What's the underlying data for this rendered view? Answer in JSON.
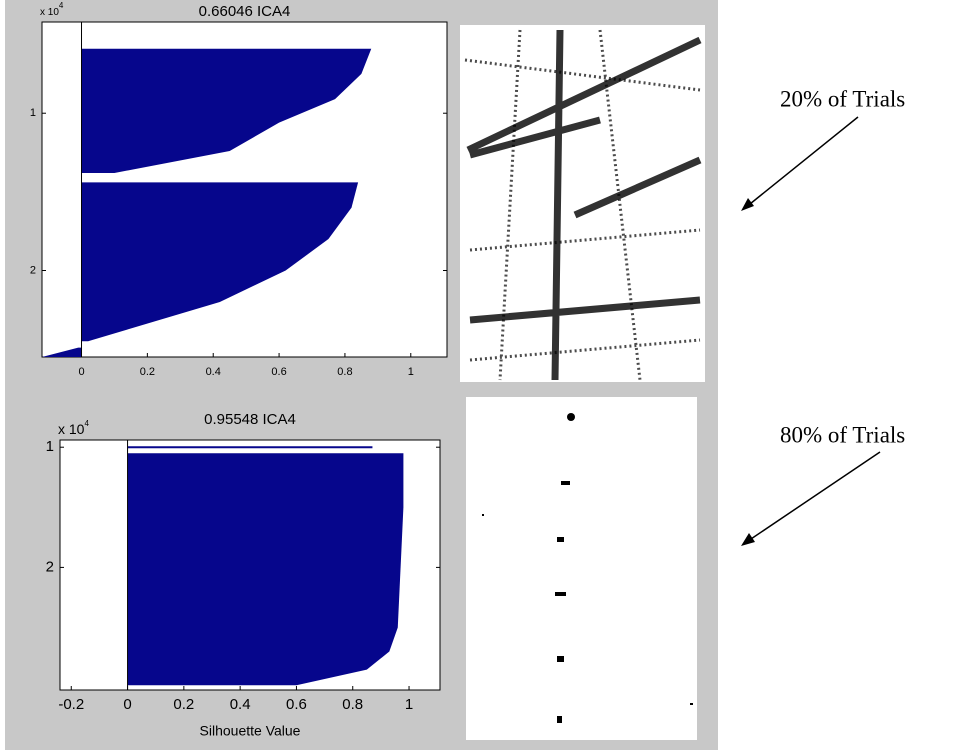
{
  "chart_data": [
    {
      "type": "silhouette",
      "title": "0.66046 ICA4",
      "y_multiplier": {
        "base": "x 10",
        "exp": "4"
      },
      "xlim": [
        -0.12,
        1.11
      ],
      "xticks": [
        0,
        0.2,
        0.4,
        0.6,
        0.8,
        1
      ],
      "ylim": [
        0.42,
        2.55
      ],
      "yticks": [
        1,
        2
      ],
      "series": [
        {
          "color": "#06068c",
          "y": [
            0.59,
            0.75,
            0.91,
            1.06,
            1.24,
            1.38
          ],
          "x": [
            0.88,
            0.85,
            0.77,
            0.6,
            0.45,
            0.1
          ]
        },
        {
          "color": "#06068c",
          "y": [
            1.44,
            1.6,
            1.8,
            2.0,
            2.2,
            2.45
          ],
          "x": [
            0.84,
            0.82,
            0.75,
            0.62,
            0.42,
            0.02
          ]
        },
        {
          "color": "#06068c",
          "y": [
            2.49,
            2.55
          ],
          "x": [
            -0.01,
            -0.12
          ]
        }
      ]
    },
    {
      "type": "silhouette",
      "title": "0.95548 ICA4",
      "y_multiplier": {
        "base": "x 10",
        "exp": "4"
      },
      "xlabel": "Silhouette Value",
      "xlim": [
        -0.24,
        1.11
      ],
      "xticks": [
        -0.2,
        0,
        0.2,
        0.4,
        0.6,
        0.8,
        1
      ],
      "ylim": [
        0.94,
        3.02
      ],
      "yticks": [
        1,
        2
      ],
      "series": [
        {
          "color": "#06068c",
          "y": [
            1.0
          ],
          "x": [
            0.87
          ]
        },
        {
          "color": "#06068c",
          "y": [
            1.05,
            1.5,
            2.0,
            2.5,
            2.7,
            2.85,
            2.98
          ],
          "x": [
            0.98,
            0.98,
            0.97,
            0.96,
            0.93,
            0.85,
            0.6
          ]
        }
      ]
    }
  ],
  "annotations": [
    "20% of Trials",
    "80% of Trials"
  ]
}
